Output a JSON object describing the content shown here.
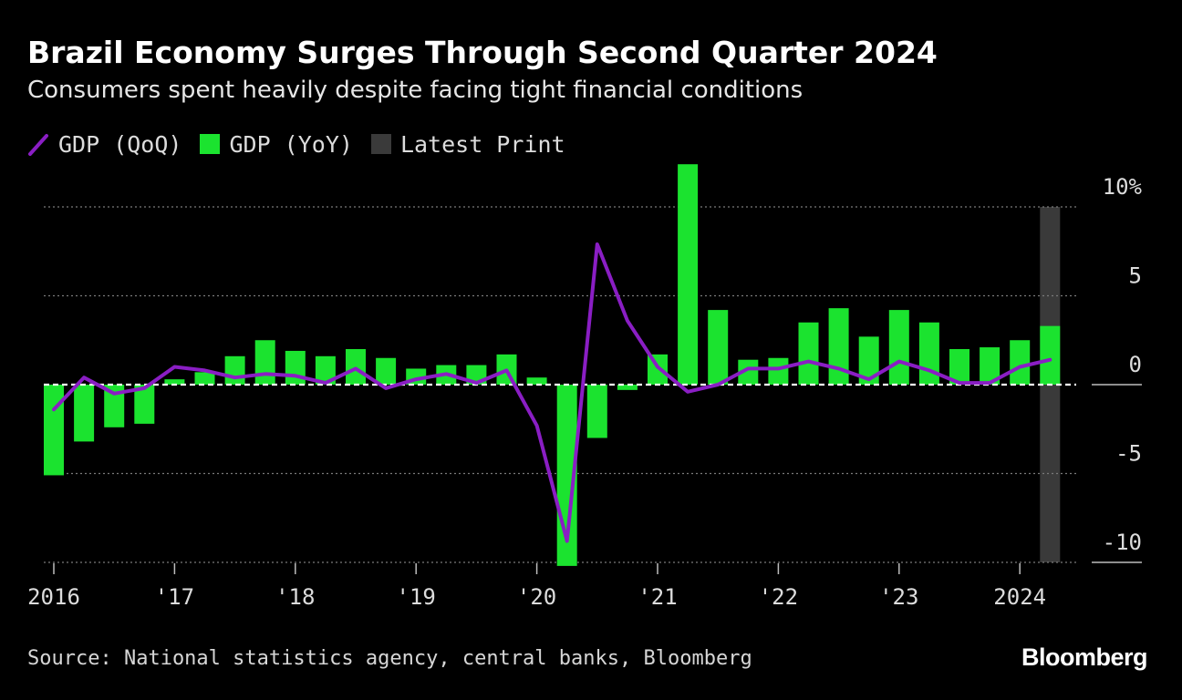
{
  "header": {
    "title": "Brazil Economy Surges Through Second Quarter 2024",
    "subtitle": "Consumers spent heavily despite facing tight financial conditions"
  },
  "legend": [
    {
      "label": "GDP (QoQ)",
      "color": "#8a1ec4",
      "kind": "line"
    },
    {
      "label": "GDP (YoY)",
      "color": "#1be32f",
      "kind": "bar"
    },
    {
      "label": "Latest Print",
      "color": "#3a3a3a",
      "kind": "band"
    }
  ],
  "footer": {
    "source": "Source: National statistics agency, central banks, Bloomberg",
    "brand": "Bloomberg"
  },
  "chart_data": {
    "type": "bar",
    "x": [
      "2016Q1",
      "2016Q2",
      "2016Q3",
      "2016Q4",
      "2017Q1",
      "2017Q2",
      "2017Q3",
      "2017Q4",
      "2018Q1",
      "2018Q2",
      "2018Q3",
      "2018Q4",
      "2019Q1",
      "2019Q2",
      "2019Q3",
      "2019Q4",
      "2020Q1",
      "2020Q2",
      "2020Q3",
      "2020Q4",
      "2021Q1",
      "2021Q2",
      "2021Q3",
      "2021Q4",
      "2022Q1",
      "2022Q2",
      "2022Q3",
      "2022Q4",
      "2023Q1",
      "2023Q2",
      "2023Q3",
      "2023Q4",
      "2024Q1",
      "2024Q2"
    ],
    "series": [
      {
        "name": "GDP (YoY)",
        "type": "bar",
        "values": [
          -5.1,
          -3.2,
          -2.4,
          -2.2,
          0.3,
          0.7,
          1.6,
          2.5,
          1.9,
          1.6,
          2.0,
          1.5,
          0.9,
          1.1,
          1.1,
          1.7,
          0.4,
          -10.2,
          -3.0,
          -0.3,
          1.7,
          12.4,
          4.2,
          1.4,
          1.5,
          3.5,
          4.3,
          2.7,
          4.2,
          3.5,
          2.0,
          2.1,
          2.5,
          3.3
        ]
      },
      {
        "name": "GDP (QoQ)",
        "type": "line",
        "values": [
          -1.4,
          0.4,
          -0.5,
          -0.2,
          1.0,
          0.8,
          0.4,
          0.6,
          0.5,
          0.1,
          0.9,
          -0.2,
          0.3,
          0.6,
          0.1,
          0.8,
          -2.3,
          -8.8,
          7.9,
          3.6,
          1.0,
          -0.4,
          0.0,
          0.9,
          0.9,
          1.3,
          0.9,
          0.3,
          1.3,
          0.8,
          0.1,
          0.1,
          1.0,
          1.4
        ]
      }
    ],
    "highlight": {
      "label": "Latest Print",
      "x": "2024Q2"
    },
    "x_tick_labels": [
      {
        "label": "2016",
        "x": "2016Q1"
      },
      {
        "label": "'17",
        "x": "2017Q1"
      },
      {
        "label": "'18",
        "x": "2018Q1"
      },
      {
        "label": "'19",
        "x": "2019Q1"
      },
      {
        "label": "'20",
        "x": "2020Q1"
      },
      {
        "label": "'21",
        "x": "2021Q1"
      },
      {
        "label": "'22",
        "x": "2022Q1"
      },
      {
        "label": "'23",
        "x": "2023Q1"
      },
      {
        "label": "2024",
        "x": "2024Q1"
      }
    ],
    "y_ticks": [
      {
        "value": 10,
        "label": "10%"
      },
      {
        "value": 5,
        "label": "5"
      },
      {
        "value": 0,
        "label": "0"
      },
      {
        "value": -5,
        "label": "-5"
      },
      {
        "value": -10,
        "label": "-10"
      }
    ],
    "ylim": [
      -10,
      10
    ],
    "y_axis_side": "right",
    "grid": true
  }
}
